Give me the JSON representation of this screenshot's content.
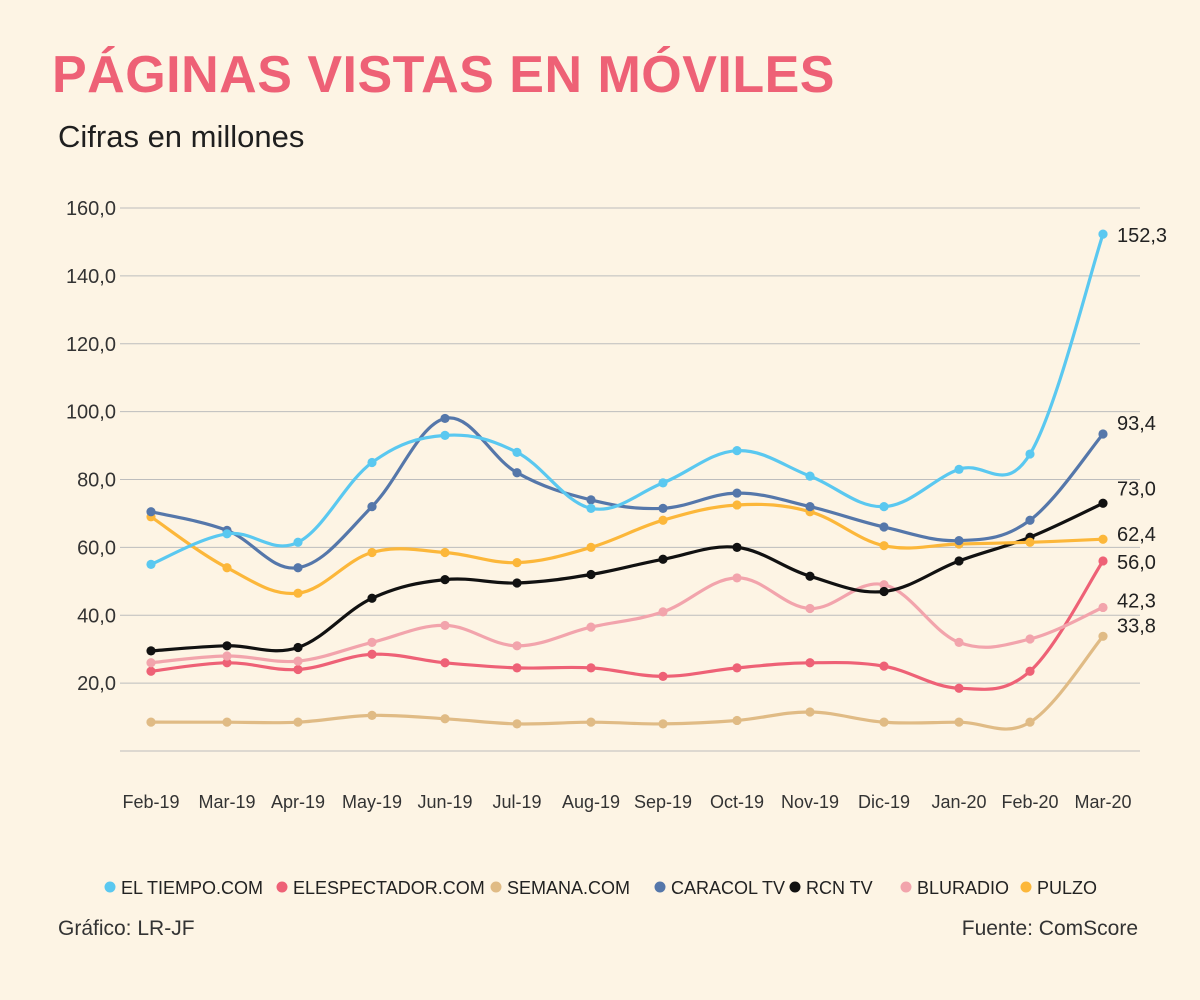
{
  "header": {
    "title": "PÁGINAS VISTAS EN MÓVILES",
    "subtitle": "Cifras en millones"
  },
  "footer": {
    "credit": "Gráfico: LR-JF",
    "source": "Fuente: ComScore"
  },
  "colors": {
    "background": "#fdf4e4",
    "title": "#ee6176",
    "grid": "#bdbdbd",
    "text": "#333333"
  },
  "chart_data": {
    "type": "line",
    "title": "PÁGINAS VISTAS EN MÓVILES",
    "subtitle": "Cifras en millones",
    "categories": [
      "Feb-19",
      "Mar-19",
      "Apr-19",
      "May-19",
      "Jun-19",
      "Jul-19",
      "Aug-19",
      "Sep-19",
      "Oct-19",
      "Nov-19",
      "Dic-19",
      "Jan-20",
      "Feb-20",
      "Mar-20"
    ],
    "y_ticks": [
      "160,0",
      "140,0",
      "120,0",
      "100,0",
      "80,0",
      "60,0",
      "40,0",
      "20,0"
    ],
    "ylim": [
      0,
      160
    ],
    "grid": true,
    "legend_position": "bottom",
    "series": [
      {
        "name": "EL TIEMPO.COM",
        "color": "#5ac8f0",
        "values": [
          55,
          64,
          61.5,
          85,
          93,
          88,
          71.5,
          79,
          88.5,
          81,
          72,
          83,
          87.5,
          152.3
        ],
        "end_label": "152,3"
      },
      {
        "name": "ELESPECTADOR.COM",
        "color": "#ee6176",
        "values": [
          23.5,
          26,
          24,
          28.5,
          26,
          24.5,
          24.5,
          22,
          24.5,
          26,
          25,
          18.5,
          23.5,
          56.0
        ],
        "end_label": "56,0"
      },
      {
        "name": "SEMANA.COM",
        "color": "#e0bb85",
        "values": [
          8.5,
          8.5,
          8.5,
          10.5,
          9.5,
          8,
          8.5,
          8,
          9,
          11.5,
          8.5,
          8.5,
          8.5,
          33.8
        ],
        "end_label": "33,8"
      },
      {
        "name": "CARACOL TV",
        "color": "#5577aa",
        "values": [
          70.5,
          65,
          54,
          72,
          98,
          82,
          74,
          71.5,
          76,
          72,
          66,
          62,
          68,
          93.4
        ],
        "end_label": "93,4"
      },
      {
        "name": "RCN TV",
        "color": "#111111",
        "values": [
          29.5,
          31,
          30.5,
          45,
          50.5,
          49.5,
          52,
          56.5,
          60,
          51.5,
          47,
          56,
          63,
          73.0
        ],
        "end_label": "73,0"
      },
      {
        "name": "BLURADIO",
        "color": "#f2a4ac",
        "values": [
          26,
          28,
          26.5,
          32,
          37,
          31,
          36.5,
          41,
          51,
          42,
          49,
          32,
          33,
          42.3
        ],
        "end_label": "42,3"
      },
      {
        "name": "PULZO",
        "color": "#fcb73a",
        "values": [
          69,
          54,
          46.5,
          58.5,
          58.5,
          55.5,
          60,
          68,
          72.5,
          70.5,
          60.5,
          61,
          61.5,
          62.4
        ],
        "end_label": "62,4"
      }
    ]
  }
}
